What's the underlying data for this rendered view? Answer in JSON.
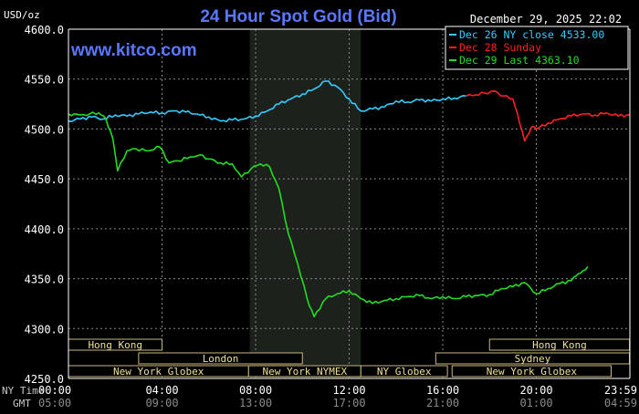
{
  "chart_data": {
    "type": "line",
    "title": "24 Hour Spot Gold (Bid)",
    "unit_label": "USD/oz",
    "source": "www.kitco.com",
    "timestamp": "December 29, 2025 22:02",
    "ylim": [
      4250,
      4600
    ],
    "y_ticks": [
      "4600.0",
      "4550.0",
      "4500.0",
      "4450.0",
      "4400.0",
      "4350.0",
      "4300.0",
      "4250.0"
    ],
    "y_tick_values": [
      4600,
      4550,
      4500,
      4450,
      4400,
      4350,
      4300,
      4250
    ],
    "x_hours": [
      0,
      4,
      8,
      12,
      16,
      20,
      23.9833
    ],
    "x_ticks_ny": [
      "00:00",
      "04:00",
      "08:00",
      "12:00",
      "16:00",
      "20:00",
      "23:59"
    ],
    "x_ticks_gmt": [
      "05:00",
      "09:00",
      "13:00",
      "17:00",
      "21:00",
      "01:00",
      "04:59"
    ],
    "row_label_ny": "NY Time",
    "row_label_gmt": "GMT",
    "shaded_hours": [
      7.75,
      12.5
    ],
    "legend": [
      {
        "label": "Dec 26 NY close 4533.00",
        "color": "#33ccff"
      },
      {
        "label": "Dec 28 Sunday",
        "color": "#ff2020"
      },
      {
        "label": "Dec 29 Last 4363.10",
        "color": "#22dd22"
      }
    ],
    "sessions": [
      {
        "label": "Hong Kong",
        "row": 0,
        "start": 0,
        "end": 4
      },
      {
        "label": "Hong Kong",
        "row": 0,
        "start": 18,
        "end": 23.9833
      },
      {
        "label": "London",
        "row": 1,
        "start": 3,
        "end": 10
      },
      {
        "label": "Sydney",
        "row": 1,
        "start": 15.7,
        "end": 23.9833
      },
      {
        "label": "New York Globex",
        "row": 2,
        "start": 0,
        "end": 7.7
      },
      {
        "label": "New York NYMEX",
        "row": 2,
        "start": 7.7,
        "end": 12.5
      },
      {
        "label": "NY Globex",
        "row": 2,
        "start": 12.5,
        "end": 16.2
      },
      {
        "label": "New York Globex",
        "row": 2,
        "start": 16.4,
        "end": 23.2
      }
    ],
    "series": [
      {
        "name": "Dec 26 NY close 4533.00",
        "color": "#33ccff",
        "x": [
          0,
          0.5,
          1,
          1.5,
          2,
          2.5,
          3,
          3.5,
          4,
          4.5,
          5,
          5.5,
          6,
          6.5,
          7,
          7.5,
          8,
          8.5,
          9,
          9.5,
          10,
          10.5,
          11,
          11.5,
          12,
          12.5,
          13,
          13.5,
          14,
          14.5,
          15,
          15.5,
          16,
          16.5,
          17
        ],
        "y": [
          4508,
          4510,
          4512,
          4510,
          4514,
          4513,
          4515,
          4517,
          4516,
          4518,
          4517,
          4515,
          4512,
          4508,
          4509,
          4510,
          4513,
          4518,
          4525,
          4530,
          4535,
          4540,
          4548,
          4542,
          4530,
          4518,
          4520,
          4522,
          4528,
          4527,
          4529,
          4528,
          4530,
          4531,
          4533
        ]
      },
      {
        "name": "Dec 28 Sunday",
        "color": "#ff2020",
        "x": [
          17,
          17.4,
          17.8,
          18.2,
          18.6,
          19,
          19.2,
          19.5,
          19.8,
          20,
          20.5,
          21,
          21.5,
          22,
          22.5,
          23,
          23.5,
          24
        ],
        "y": [
          4533,
          4534,
          4536,
          4538,
          4533,
          4530,
          4515,
          4488,
          4502,
          4500,
          4506,
          4510,
          4513,
          4515,
          4514,
          4516,
          4513,
          4514
        ]
      },
      {
        "name": "Dec 29 Last 4363.10",
        "color": "#22dd22",
        "x": [
          0,
          0.5,
          0.9,
          1.3,
          1.6,
          1.9,
          2.1,
          2.5,
          2.9,
          3.4,
          3.9,
          4.3,
          4.7,
          5.2,
          5.6,
          6,
          6.5,
          7,
          7.4,
          7.8,
          8.2,
          8.6,
          9,
          9.4,
          9.8,
          10.2,
          10.5,
          11,
          11.5,
          12,
          12.5,
          13,
          13.5,
          14,
          14.5,
          15,
          15.5,
          16,
          16.5,
          17,
          17.5,
          18,
          18.5,
          19,
          19.5,
          20,
          20.5,
          21,
          21.5,
          21.8,
          22,
          22.2
        ],
        "y": [
          4515,
          4514,
          4515,
          4516,
          4510,
          4490,
          4458,
          4478,
          4480,
          4478,
          4482,
          4466,
          4468,
          4472,
          4474,
          4470,
          4466,
          4465,
          4452,
          4460,
          4465,
          4462,
          4440,
          4395,
          4365,
          4330,
          4312,
          4330,
          4335,
          4338,
          4330,
          4325,
          4328,
          4330,
          4332,
          4333,
          4330,
          4332,
          4330,
          4332,
          4333,
          4334,
          4340,
          4342,
          4346,
          4335,
          4340,
          4345,
          4348,
          4355,
          4358,
          4362
        ]
      }
    ]
  }
}
